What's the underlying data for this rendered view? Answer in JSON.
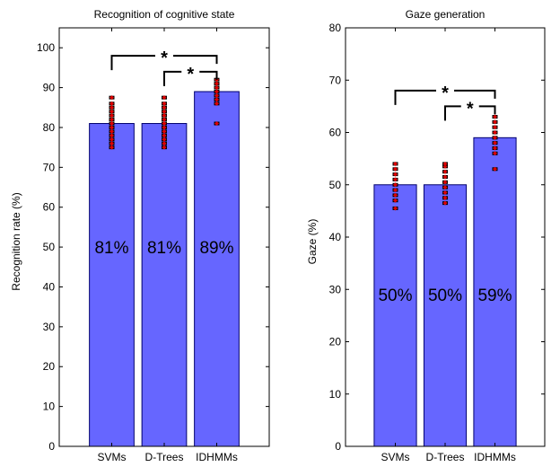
{
  "chart_data": [
    {
      "type": "bar",
      "title": "Recognition of cognitive state",
      "ylabel": "Recognition rate (%)",
      "categories": [
        "SVMs",
        "D-Trees",
        "IDHMMs"
      ],
      "values": [
        81,
        81,
        89
      ],
      "bar_labels": [
        "81%",
        "81%",
        "89%"
      ],
      "bar_label_y": 50,
      "ylim": [
        0,
        105
      ],
      "yticks": [
        0,
        10,
        20,
        30,
        40,
        50,
        60,
        70,
        80,
        90,
        100
      ],
      "bar_color": "#6666ff",
      "point_color": "#dd0000",
      "points": [
        [
          75,
          76,
          77,
          78,
          79,
          80,
          81,
          82,
          83,
          84,
          85,
          86,
          87.5
        ],
        [
          75,
          76,
          77,
          78,
          79,
          80,
          81,
          82,
          83,
          84,
          85,
          86,
          87.5
        ],
        [
          81,
          86,
          87,
          88,
          89,
          90,
          91,
          92
        ]
      ],
      "significance": [
        {
          "from": 0,
          "to": 2,
          "y": 98,
          "label": "*"
        },
        {
          "from": 1,
          "to": 2,
          "y": 94,
          "label": "*"
        }
      ]
    },
    {
      "type": "bar",
      "title": "Gaze generation",
      "ylabel": "Gaze (%)",
      "categories": [
        "SVMs",
        "D-Trees",
        "IDHMMs"
      ],
      "values": [
        50,
        50,
        59
      ],
      "bar_labels": [
        "50%",
        "50%",
        "59%"
      ],
      "bar_label_y": 29,
      "ylim": [
        0,
        80
      ],
      "yticks": [
        0,
        10,
        20,
        30,
        40,
        50,
        60,
        70,
        80
      ],
      "bar_color": "#6666ff",
      "point_color": "#dd0000",
      "points": [
        [
          45.5,
          47,
          48,
          49,
          50,
          51,
          52,
          53,
          54
        ],
        [
          46.5,
          47.5,
          48.5,
          49.5,
          50.5,
          51.5,
          52.5,
          53.5,
          54
        ],
        [
          53,
          56,
          57,
          58,
          59,
          60,
          61,
          62,
          63
        ]
      ],
      "significance": [
        {
          "from": 0,
          "to": 2,
          "y": 68,
          "label": "*"
        },
        {
          "from": 1,
          "to": 2,
          "y": 65,
          "label": "*"
        }
      ]
    }
  ]
}
